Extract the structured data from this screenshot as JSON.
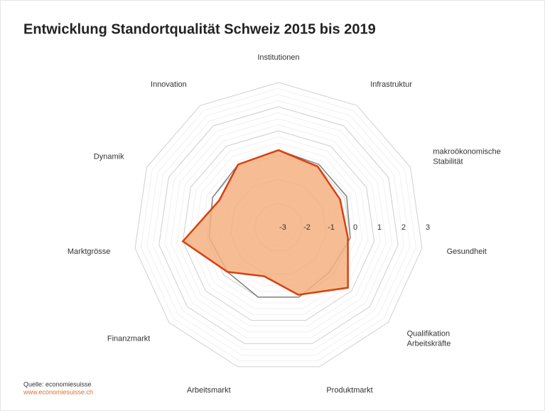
{
  "chart_data": {
    "type": "radar",
    "title": "Entwicklung Standortqualität Schweiz 2015 bis 2019",
    "categories": [
      "Institutionen",
      "Infrastruktur",
      "makroökonomische Stabilität",
      "Gesundheit",
      "Qualifikation Arbeitskräfte",
      "Produktmarkt",
      "Arbeitsmarkt",
      "Finanzmarkt",
      "Marktgrösse",
      "Dynamik",
      "Innovation"
    ],
    "series": [
      {
        "color": "#808080",
        "values": [
          0.2,
          0.1,
          0.1,
          0.0,
          -0.2,
          0.0,
          0.0,
          -0.2,
          -0.1,
          0.0,
          0.1
        ]
      },
      {
        "color": "#d9400f",
        "fill": "#f4b183",
        "values": [
          0.2,
          0.0,
          -0.2,
          -0.1,
          0.8,
          -0.1,
          -0.9,
          -0.2,
          1.0,
          -0.3,
          0.1
        ]
      }
    ],
    "rlim": [
      -3,
      3
    ],
    "rticks": [
      -3,
      -2,
      -1,
      0,
      1,
      2,
      3
    ],
    "source": "Quelle: economiesuisse",
    "source_url": "www.economiesuisse.ch"
  }
}
